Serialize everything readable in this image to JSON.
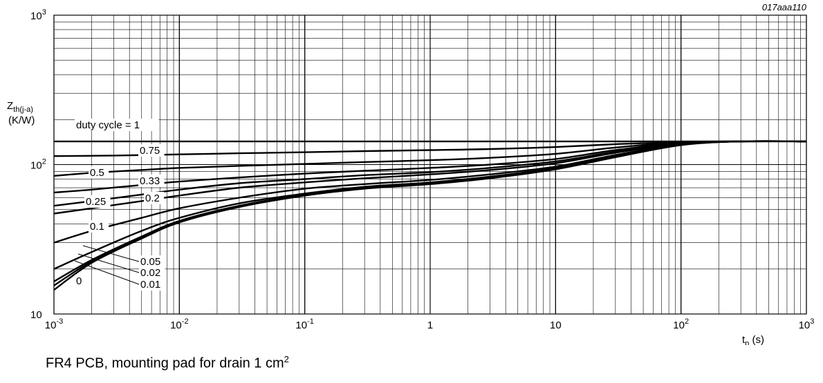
{
  "figure_id": "017aaa110",
  "caption": {
    "text": "FR4 PCB, mounting pad for drain 1 cm",
    "superscript": "2"
  },
  "chart_data": {
    "type": "line",
    "x_scale": "log",
    "y_scale": "log",
    "xlim": [
      0.001,
      1000
    ],
    "ylim": [
      10,
      1000
    ],
    "grid": true,
    "ylabel": {
      "main": "Z",
      "sub": "th(j-a)",
      "unit": "(K/W)"
    },
    "xlabel": {
      "main": "t",
      "sub": "p",
      "unit": " (s)"
    },
    "x_ticks": [
      {
        "value": 0.001,
        "base": "10",
        "exp": "-3"
      },
      {
        "value": 0.01,
        "base": "10",
        "exp": "-2"
      },
      {
        "value": 0.1,
        "base": "10",
        "exp": "-1"
      },
      {
        "value": 1,
        "base": "1",
        "exp": ""
      },
      {
        "value": 10,
        "base": "10",
        "exp": ""
      },
      {
        "value": 100,
        "base": "10",
        "exp": "2"
      },
      {
        "value": 1000,
        "base": "10",
        "exp": "3"
      }
    ],
    "y_ticks": [
      {
        "value": 10,
        "base": "10",
        "exp": ""
      },
      {
        "value": 100,
        "base": "10",
        "exp": "2"
      },
      {
        "value": 1000,
        "base": "10",
        "exp": "3"
      }
    ],
    "series": [
      {
        "name": "duty cycle = 1",
        "x": [
          0.001,
          1000
        ],
        "y": [
          143,
          143
        ]
      },
      {
        "name": "0.75",
        "x": [
          0.001,
          0.003,
          0.01,
          0.03,
          0.1,
          0.3,
          1,
          3,
          10,
          30,
          100,
          300,
          1000
        ],
        "y": [
          114,
          115,
          117,
          119,
          121,
          123,
          125,
          127,
          131,
          137,
          141,
          143,
          143
        ]
      },
      {
        "name": "0.5",
        "x": [
          0.001,
          0.002,
          0.005,
          0.01,
          0.03,
          0.1,
          0.3,
          1,
          3,
          10,
          30,
          100,
          300,
          1000
        ],
        "y": [
          84,
          88,
          92,
          95,
          98,
          101,
          104,
          107,
          111,
          118,
          130,
          141,
          143,
          143
        ]
      },
      {
        "name": "0.33",
        "x": [
          0.001,
          0.002,
          0.005,
          0.01,
          0.03,
          0.1,
          0.3,
          1,
          3,
          10,
          30,
          100,
          300,
          1000
        ],
        "y": [
          65,
          68,
          73,
          77,
          82,
          87,
          91,
          95,
          100,
          109,
          125,
          140,
          143,
          143
        ]
      },
      {
        "name": "0.25",
        "x": [
          0.001,
          0.002,
          0.005,
          0.01,
          0.03,
          0.1,
          0.3,
          1,
          3,
          10,
          30,
          100,
          300,
          1000
        ],
        "y": [
          53,
          57,
          63,
          68,
          75,
          80,
          85,
          89,
          95,
          105,
          122,
          139,
          143,
          143
        ]
      },
      {
        "name": "0.2",
        "x": [
          0.001,
          0.002,
          0.005,
          0.01,
          0.03,
          0.1,
          0.3,
          1,
          3,
          10,
          30,
          100,
          300,
          1000
        ],
        "y": [
          47,
          51,
          57,
          62,
          70,
          76,
          81,
          86,
          92,
          102,
          120,
          138,
          143,
          143
        ]
      },
      {
        "name": "0.1",
        "x": [
          0.001,
          0.002,
          0.005,
          0.01,
          0.03,
          0.1,
          0.3,
          1,
          3,
          10,
          30,
          100,
          300,
          1000
        ],
        "y": [
          30,
          36,
          44,
          51,
          60,
          69,
          74,
          79,
          86,
          97,
          116,
          137,
          143,
          143
        ]
      },
      {
        "name": "0.05",
        "x": [
          0.001,
          0.002,
          0.005,
          0.01,
          0.03,
          0.1,
          0.3,
          1,
          3,
          10,
          30,
          100,
          300,
          1000
        ],
        "y": [
          20,
          26,
          36,
          44,
          55,
          64,
          71,
          76,
          83,
          95,
          114,
          136,
          143,
          143
        ]
      },
      {
        "name": "0.02",
        "x": [
          0.001,
          0.002,
          0.005,
          0.01,
          0.03,
          0.1,
          0.3,
          1,
          3,
          10,
          30,
          100,
          300,
          1000
        ],
        "y": [
          16.5,
          23,
          33,
          42,
          53,
          63,
          70,
          75,
          82,
          94,
          113,
          136,
          143,
          143
        ]
      },
      {
        "name": "0.01",
        "x": [
          0.001,
          0.002,
          0.005,
          0.01,
          0.03,
          0.1,
          0.3,
          1,
          3,
          10,
          30,
          100,
          300,
          1000
        ],
        "y": [
          15.5,
          22.5,
          32.5,
          41.5,
          52.5,
          62.5,
          69.5,
          74.5,
          81.5,
          93.5,
          112.5,
          135.5,
          143,
          143
        ]
      },
      {
        "name": "0",
        "x": [
          0.001,
          0.002,
          0.005,
          0.01,
          0.03,
          0.1,
          0.3,
          1,
          3,
          10,
          30,
          100,
          300,
          1000
        ],
        "y": [
          14.5,
          22,
          32,
          41,
          52,
          62,
          69,
          74,
          81,
          93,
          112,
          135,
          143,
          143
        ]
      }
    ],
    "annotations": [
      {
        "text": "duty cycle = 1",
        "series": "duty cycle = 1"
      },
      {
        "text": "0.75",
        "series": "0.75"
      },
      {
        "text": "0.5",
        "series": "0.5"
      },
      {
        "text": "0.33",
        "series": "0.33"
      },
      {
        "text": "0.25",
        "series": "0.25"
      },
      {
        "text": "0.2",
        "series": "0.2"
      },
      {
        "text": "0.1",
        "series": "0.1"
      },
      {
        "text": "0.05",
        "series": "0.05"
      },
      {
        "text": "0.02",
        "series": "0.02"
      },
      {
        "text": "0.01",
        "series": "0.01"
      },
      {
        "text": "0",
        "series": "0"
      }
    ]
  }
}
